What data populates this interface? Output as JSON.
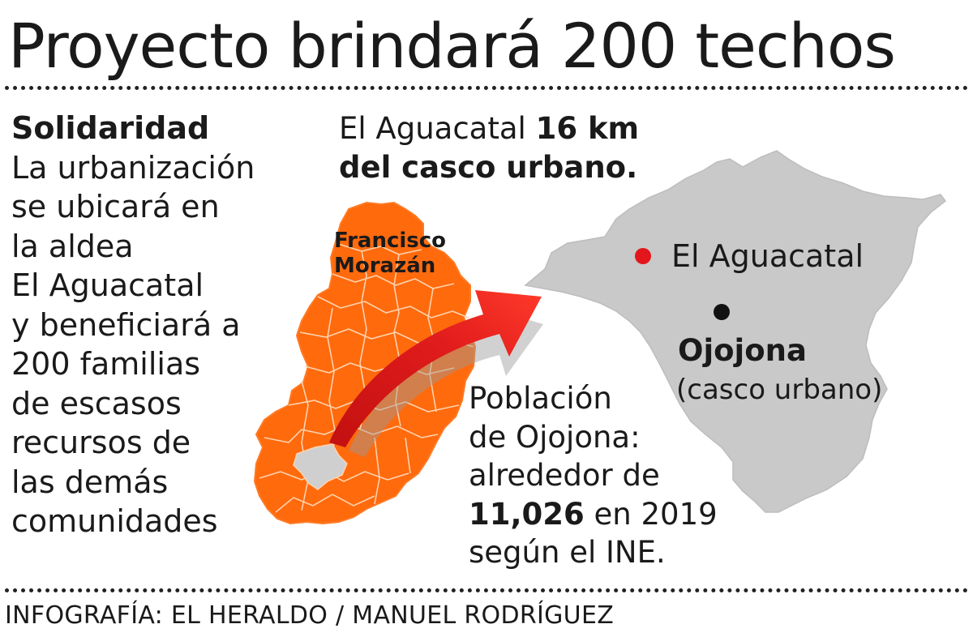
{
  "title": "Proyecto brindará 200 techos",
  "side": {
    "heading": "Solidaridad",
    "lines": [
      "La urbanización",
      "se ubicará en",
      "la aldea",
      "El Aguacatal",
      "y beneficiará a",
      "200 familias",
      "de escasos",
      "recursos de",
      "las demás",
      "comunidades"
    ]
  },
  "distance": {
    "prefix": "El Aguacatal ",
    "bold1": "16 km",
    "bold2": "del casco urbano."
  },
  "map": {
    "department_line1": "Francisco",
    "department_line2": "Morazán",
    "aldea_label": "El Aguacatal",
    "town_label": "Ojojona",
    "town_sub": "(casco urbano)",
    "colors": {
      "department": "#ff6a0d",
      "municipality": "#cfcfcf",
      "arrow": "#e11c1c",
      "aldea_marker": "#e3161b",
      "town_marker": "#111111"
    }
  },
  "population": {
    "line1": "Población",
    "line2": "de Ojojona:",
    "line3": "alrededor de",
    "number": "11,026",
    "line4_rest": " en 2019",
    "line5": "según el INE."
  },
  "credit": "INFOGRAFÍA: EL HERALDO / MANUEL RODRÍGUEZ"
}
